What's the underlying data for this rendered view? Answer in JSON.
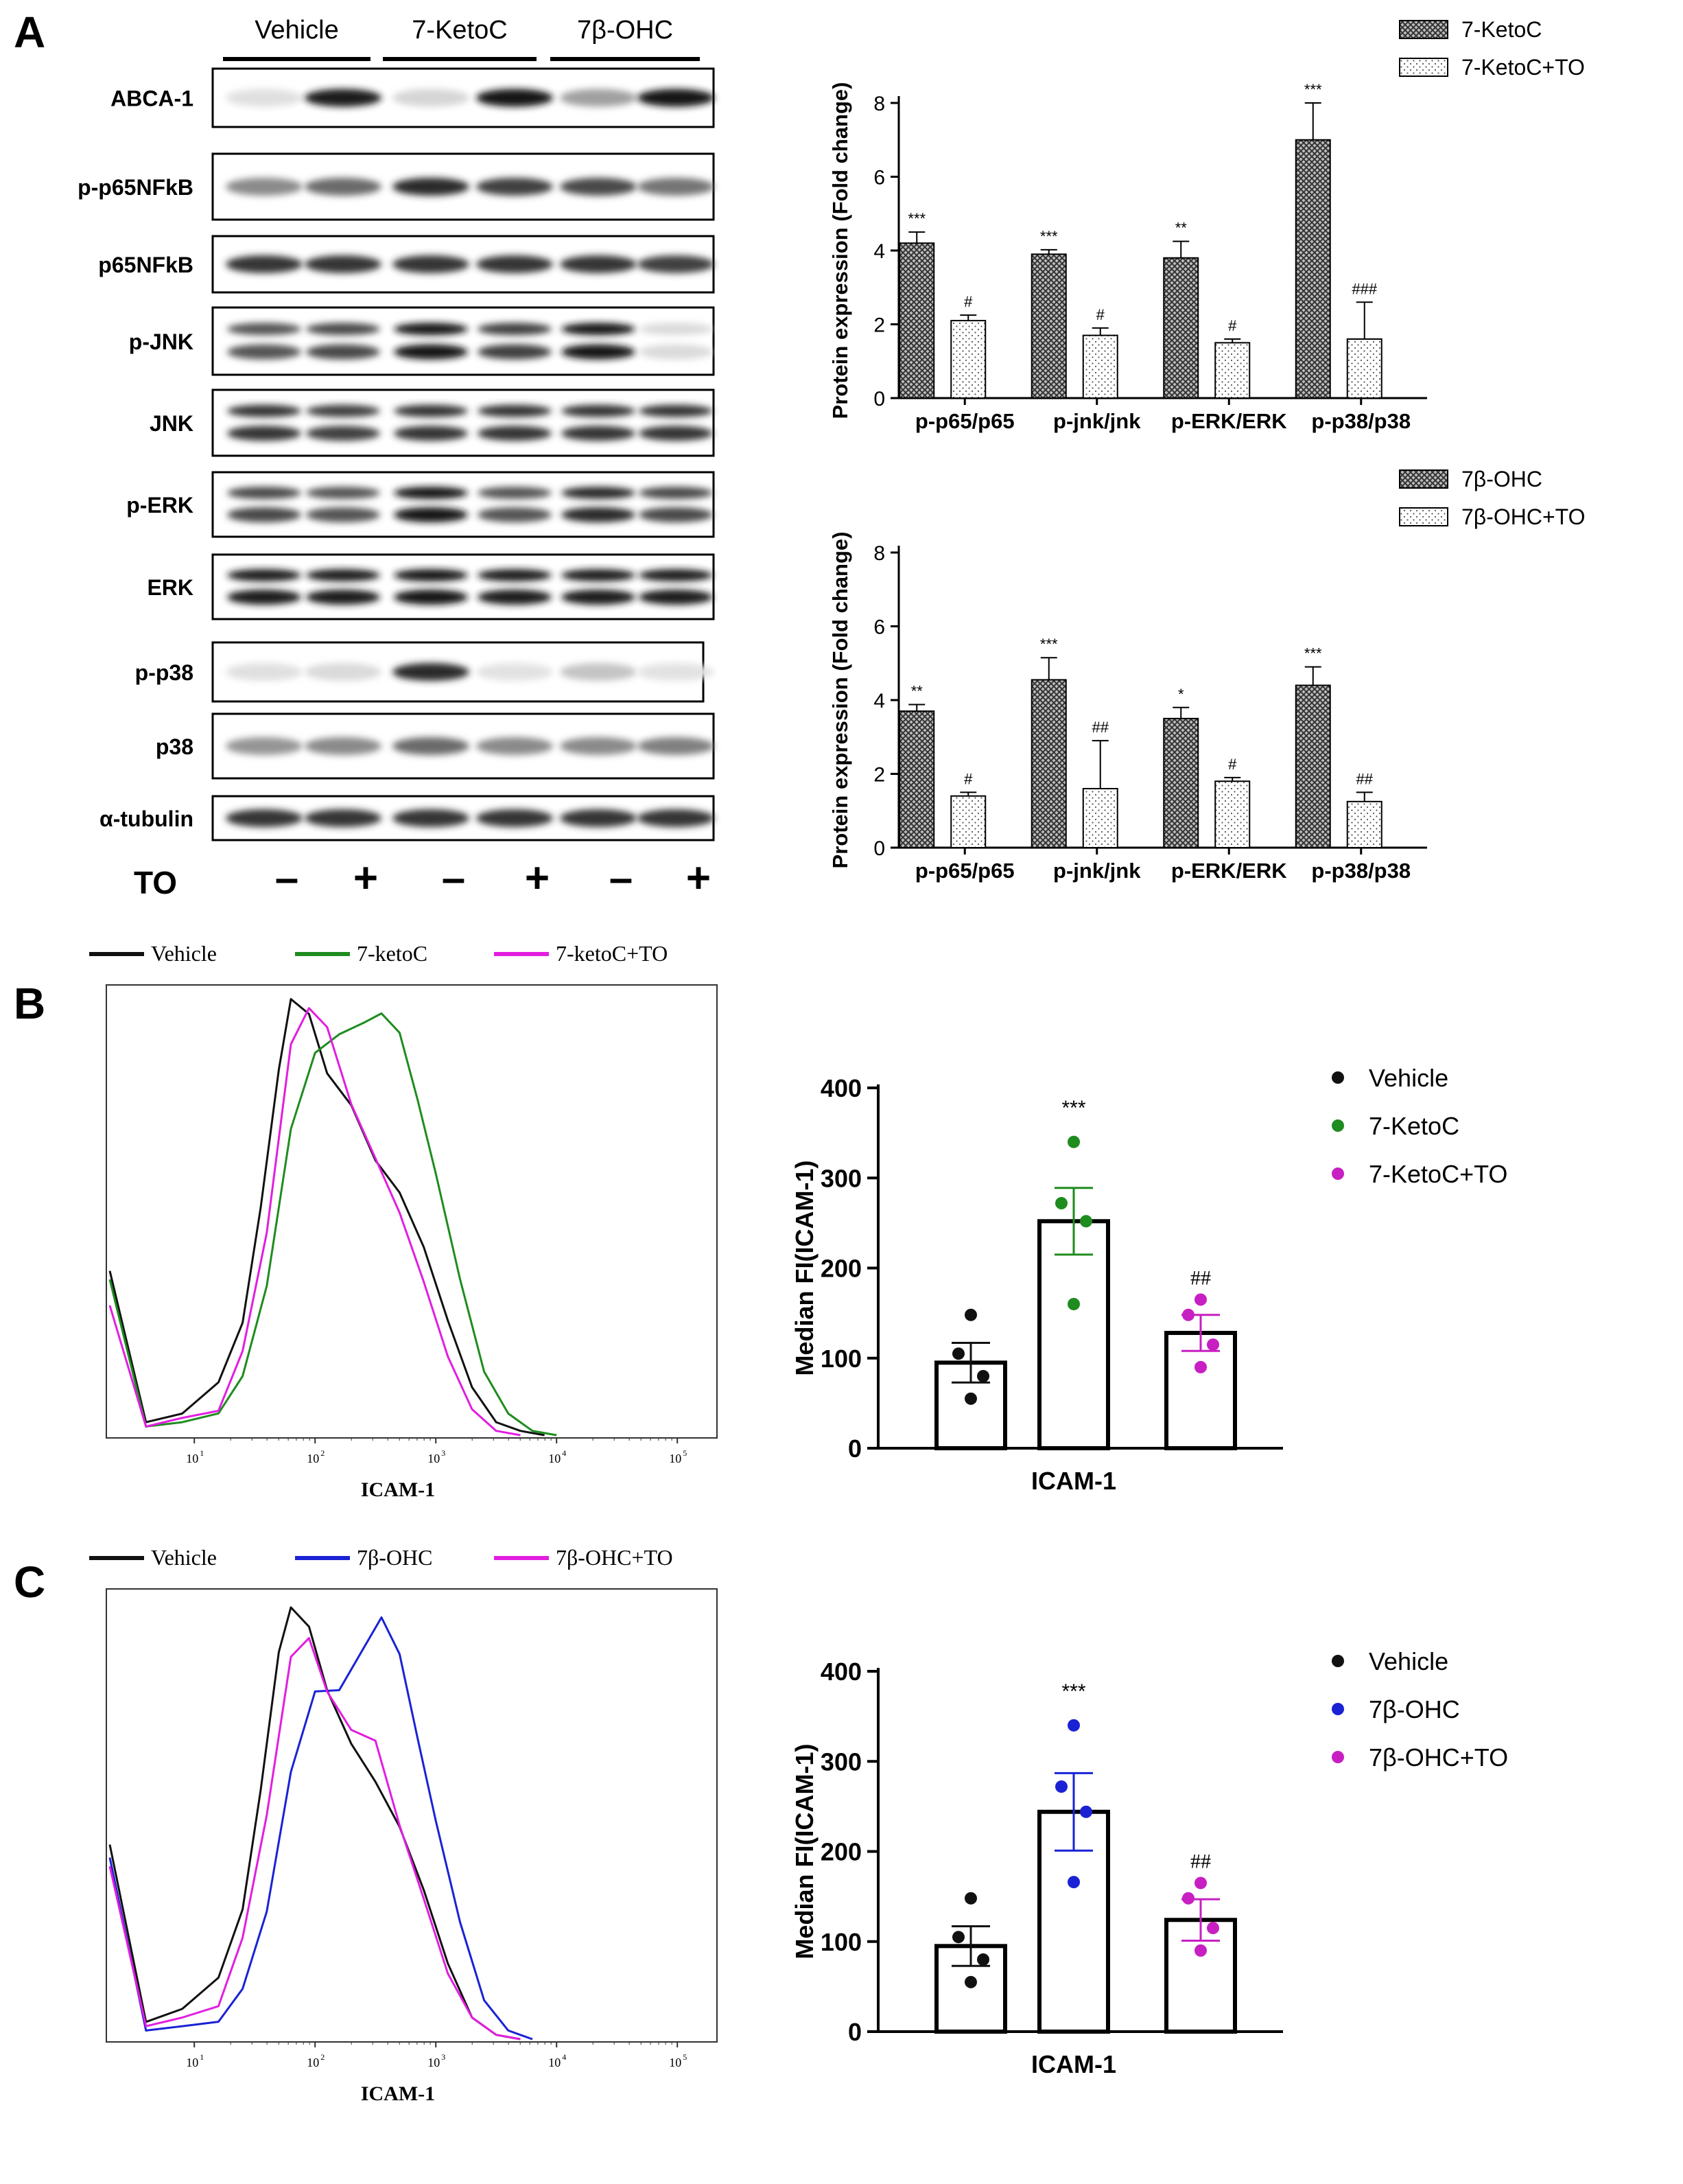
{
  "panels": {
    "a": "A",
    "b": "B",
    "c": "C"
  },
  "blot": {
    "groups": [
      "Vehicle",
      "7-KetoC",
      "7β-OHC"
    ],
    "rows": [
      {
        "label": "ABCA-1",
        "int": [
          0.05,
          0.95,
          0.1,
          1.0,
          0.35,
          1.0
        ]
      },
      {
        "label": "p-p65NFkB",
        "int": [
          0.45,
          0.6,
          0.9,
          0.8,
          0.75,
          0.55
        ]
      },
      {
        "label": "p65NFkB",
        "int": [
          0.85,
          0.85,
          0.85,
          0.85,
          0.85,
          0.8
        ]
      },
      {
        "label": "p-JNK",
        "int": [
          0.7,
          0.75,
          1.0,
          0.8,
          1.0,
          0.08
        ]
      },
      {
        "label": "JNK",
        "int": [
          0.85,
          0.8,
          0.85,
          0.85,
          0.85,
          0.85
        ]
      },
      {
        "label": "p-ERK",
        "int": [
          0.75,
          0.7,
          1.0,
          0.7,
          0.9,
          0.75
        ]
      },
      {
        "label": "ERK",
        "int": [
          0.95,
          0.95,
          1.0,
          0.95,
          0.95,
          0.95
        ]
      },
      {
        "label": "p-p38",
        "int": [
          0.05,
          0.08,
          0.9,
          0.04,
          0.18,
          0.04
        ]
      },
      {
        "label": "p38",
        "int": [
          0.4,
          0.45,
          0.6,
          0.45,
          0.45,
          0.5
        ]
      },
      {
        "label": "α-tubulin",
        "int": [
          0.85,
          0.85,
          0.85,
          0.85,
          0.85,
          0.85
        ]
      }
    ],
    "treatment_label": "TO",
    "treatment_marks": [
      "–",
      "+",
      "–",
      "+",
      "–",
      "+"
    ]
  },
  "chart_data": [
    {
      "id": "A-top",
      "type": "bar",
      "ylabel": "Protein expression (Fold change)",
      "ylim": [
        0,
        8
      ],
      "yticks": [
        "0",
        "2",
        "4",
        "6",
        "8"
      ],
      "categories": [
        "p-p65/p65",
        "p-jnk/jnk",
        "p-ERK/ERK",
        "p-p38/p38"
      ],
      "series": [
        {
          "name": "7-KetoC",
          "values": [
            4.2,
            3.9,
            3.8,
            7.0
          ],
          "errors": [
            0.3,
            0.12,
            0.45,
            1.0
          ],
          "sig": [
            "***",
            "***",
            "**",
            "***"
          ]
        },
        {
          "name": "7-KetoC+TO",
          "values": [
            2.1,
            1.7,
            1.5,
            1.6
          ],
          "errors": [
            0.15,
            0.2,
            0.1,
            1.0
          ],
          "sig": [
            "#",
            "#",
            "#",
            "###"
          ]
        }
      ]
    },
    {
      "id": "A-bottom",
      "type": "bar",
      "ylabel": "Protein expression (Fold change)",
      "ylim": [
        0,
        8
      ],
      "yticks": [
        "0",
        "2",
        "4",
        "6",
        "8"
      ],
      "categories": [
        "p-p65/p65",
        "p-jnk/jnk",
        "p-ERK/ERK",
        "p-p38/p38"
      ],
      "series": [
        {
          "name": "7β-OHC",
          "values": [
            3.7,
            4.55,
            3.5,
            4.4
          ],
          "errors": [
            0.18,
            0.6,
            0.3,
            0.5
          ],
          "sig": [
            "**",
            "***",
            "*",
            "***"
          ]
        },
        {
          "name": "7β-OHC+TO",
          "values": [
            1.4,
            1.6,
            1.8,
            1.25
          ],
          "errors": [
            0.1,
            1.3,
            0.1,
            0.25
          ],
          "sig": [
            "#",
            "##",
            "#",
            "##"
          ]
        }
      ]
    },
    {
      "id": "B-flow",
      "type": "line",
      "xlabel": "ICAM-1",
      "xticks": [
        "10",
        "10",
        "10",
        "10",
        "10"
      ],
      "xtick_exp": [
        "1",
        "2",
        "3",
        "4",
        "5"
      ],
      "legend": [
        "Vehicle",
        "7-ketoC",
        "7-ketoC+TO"
      ],
      "colors": [
        "#111111",
        "#1e8c1e",
        "#e21ee0"
      ],
      "series": [
        {
          "name": "Vehicle",
          "x": [
            0.3,
            0.6,
            0.9,
            1.2,
            1.4,
            1.55,
            1.7,
            1.8,
            1.95,
            2.1,
            2.3,
            2.5,
            2.7,
            2.9,
            3.1,
            3.3,
            3.5,
            3.7,
            3.9
          ],
          "y": [
            0.38,
            0.03,
            0.05,
            0.12,
            0.28,
            0.55,
            0.85,
            0.99,
            0.95,
            0.83,
            0.78,
            0.66,
            0.57,
            0.42,
            0.24,
            0.1,
            0.03,
            0.01,
            0
          ]
        },
        {
          "name": "7-ketoC",
          "x": [
            0.3,
            0.6,
            0.9,
            1.2,
            1.4,
            1.6,
            1.8,
            2.0,
            2.2,
            2.4,
            2.55,
            2.7,
            2.85,
            3.0,
            3.2,
            3.4,
            3.6,
            3.8,
            4.0
          ],
          "y": [
            0.36,
            0.02,
            0.03,
            0.07,
            0.16,
            0.35,
            0.69,
            0.86,
            0.92,
            0.97,
            1.0,
            0.94,
            0.76,
            0.58,
            0.35,
            0.16,
            0.05,
            0.01,
            0
          ]
        },
        {
          "name": "7-ketoC+TO",
          "x": [
            0.3,
            0.6,
            0.9,
            1.2,
            1.4,
            1.6,
            1.8,
            1.95,
            2.1,
            2.3,
            2.5,
            2.7,
            2.9,
            3.1,
            3.3,
            3.5,
            3.7
          ],
          "y": [
            0.3,
            0.02,
            0.04,
            0.08,
            0.2,
            0.45,
            0.88,
            0.98,
            0.96,
            0.79,
            0.65,
            0.5,
            0.33,
            0.17,
            0.06,
            0.01,
            0
          ]
        }
      ]
    },
    {
      "id": "B-bar",
      "type": "bar",
      "xlabel": "ICAM-1",
      "ylabel": "Median FI(ICAM-1)",
      "ylim": [
        0,
        400
      ],
      "yticks": [
        "0",
        "100",
        "200",
        "300",
        "400"
      ],
      "categories": [
        "Vehicle",
        "7-KetoC",
        "7-KetoC+TO"
      ],
      "colors": [
        "#111111",
        "#1e8c1e",
        "#c71fc2"
      ],
      "values": [
        95,
        252,
        128
      ],
      "errors": [
        22,
        37,
        20
      ],
      "points": [
        [
          148,
          105,
          80,
          55
        ],
        [
          340,
          272,
          252,
          160
        ],
        [
          165,
          148,
          115,
          90
        ]
      ],
      "sig": [
        "",
        "***",
        "##"
      ]
    },
    {
      "id": "C-flow",
      "type": "line",
      "xlabel": "ICAM-1",
      "xticks": [
        "10",
        "10",
        "10",
        "10",
        "10"
      ],
      "xtick_exp": [
        "1",
        "2",
        "3",
        "4",
        "5"
      ],
      "legend": [
        "Vehicle",
        "7β-OHC",
        "7β-OHC+TO"
      ],
      "colors": [
        "#111111",
        "#1a22d4",
        "#e21ee0"
      ],
      "series": [
        {
          "name": "Vehicle",
          "x": [
            0.3,
            0.6,
            0.9,
            1.2,
            1.4,
            1.55,
            1.7,
            1.8,
            1.95,
            2.1,
            2.3,
            2.5,
            2.7,
            2.9,
            3.1,
            3.3,
            3.5,
            3.7
          ],
          "y": [
            0.45,
            0.04,
            0.07,
            0.14,
            0.32,
            0.6,
            0.9,
            0.98,
            0.93,
            0.8,
            0.7,
            0.62,
            0.5,
            0.33,
            0.15,
            0.05,
            0.01,
            0
          ]
        },
        {
          "name": "7β-OHC",
          "x": [
            0.3,
            0.6,
            0.9,
            1.2,
            1.4,
            1.6,
            1.8,
            2.0,
            2.2,
            2.4,
            2.55,
            2.7,
            2.85,
            3.0,
            3.2,
            3.4,
            3.6,
            3.8
          ],
          "y": [
            0.42,
            0.02,
            0.03,
            0.06,
            0.14,
            0.3,
            0.6,
            0.78,
            0.8,
            0.92,
            1.0,
            0.9,
            0.68,
            0.48,
            0.26,
            0.09,
            0.02,
            0
          ]
        },
        {
          "name": "7β-OHC+TO",
          "x": [
            0.3,
            0.6,
            0.9,
            1.2,
            1.4,
            1.6,
            1.8,
            1.95,
            2.1,
            2.3,
            2.5,
            2.7,
            2.9,
            3.1,
            3.3,
            3.5,
            3.7
          ],
          "y": [
            0.4,
            0.03,
            0.05,
            0.1,
            0.24,
            0.5,
            0.86,
            0.92,
            0.82,
            0.74,
            0.7,
            0.48,
            0.3,
            0.14,
            0.05,
            0.01,
            0
          ]
        }
      ]
    },
    {
      "id": "C-bar",
      "type": "bar",
      "xlabel": "ICAM-1",
      "ylabel": "Median FI(ICAM-1)",
      "ylim": [
        0,
        400
      ],
      "yticks": [
        "0",
        "100",
        "200",
        "300",
        "400"
      ],
      "categories": [
        "Vehicle",
        "7β-OHC",
        "7β-OHC+TO"
      ],
      "colors": [
        "#111111",
        "#1a22d4",
        "#c71fc2"
      ],
      "values": [
        95,
        244,
        124
      ],
      "errors": [
        22,
        43,
        23
      ],
      "points": [
        [
          148,
          105,
          80,
          55
        ],
        [
          340,
          272,
          244,
          166
        ],
        [
          165,
          148,
          115,
          90
        ]
      ],
      "sig": [
        "",
        "***",
        "##"
      ]
    }
  ]
}
